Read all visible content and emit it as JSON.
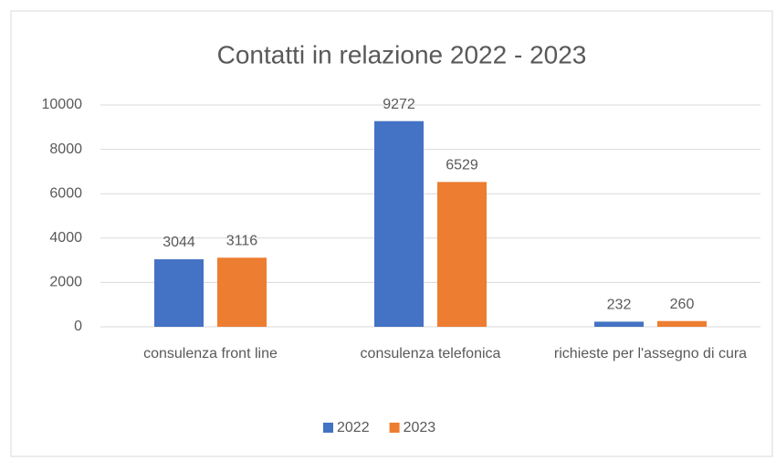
{
  "chart_data": {
    "type": "bar",
    "title": "Contatti in relazione 2022 - 2023",
    "categories": [
      "consulenza front line",
      "consulenza telefonica",
      "richieste per l'assegno di cura"
    ],
    "series": [
      {
        "name": "2022",
        "color": "#4472c4",
        "values": [
          3044,
          9272,
          232
        ]
      },
      {
        "name": "2023",
        "color": "#ed7d31",
        "values": [
          3116,
          6529,
          260
        ]
      }
    ],
    "ylim": [
      0,
      10000
    ],
    "yticks": [
      0,
      2000,
      4000,
      6000,
      8000,
      10000
    ],
    "grid": true,
    "legend": "bottom"
  }
}
